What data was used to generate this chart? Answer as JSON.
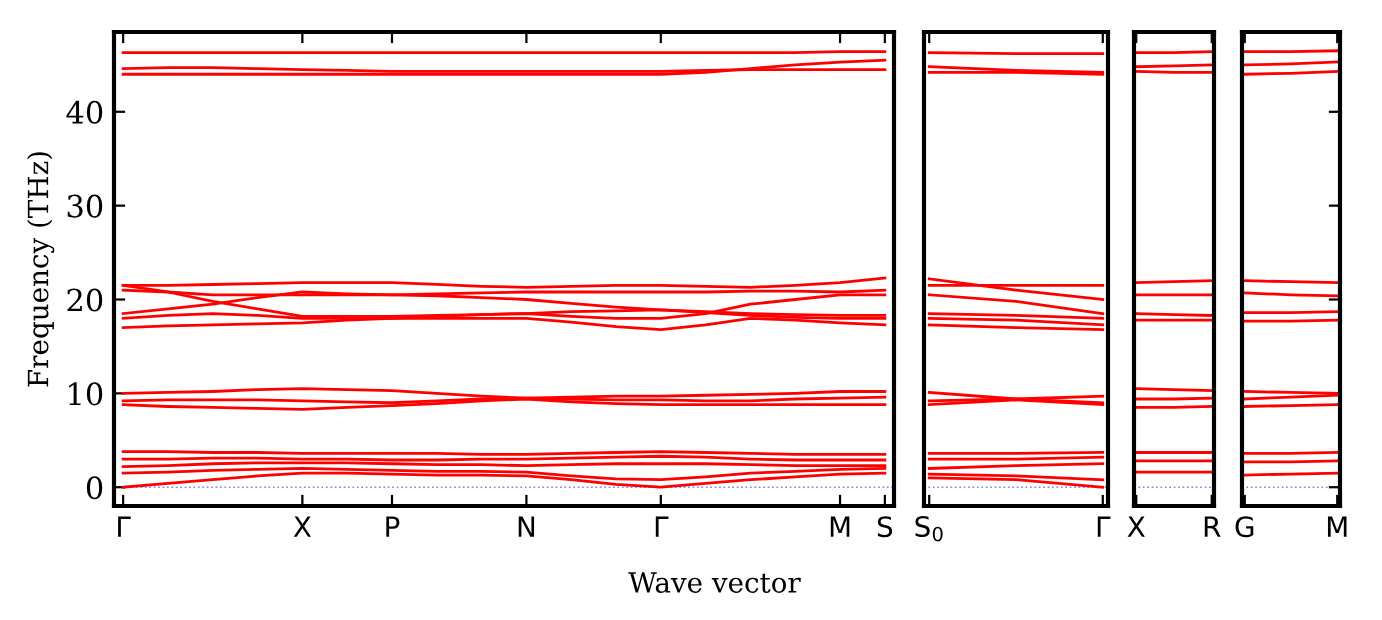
{
  "chart_data": [
    {
      "type": "line",
      "xlabel": "Wave vector",
      "ylabel": "Frequency (THz)",
      "line_style": "solid",
      "grid": false,
      "categories": [
        "Γ",
        null,
        null,
        null,
        "X",
        null,
        "P",
        null,
        null,
        "N",
        null,
        null,
        "Γ",
        null,
        null,
        null,
        "M",
        "S"
      ],
      "ylim": [
        -2,
        48.5
      ],
      "yticks": [
        0,
        10,
        20,
        30,
        40
      ],
      "ref_lines": [
        {
          "axis": "y",
          "value": 0,
          "color": "#8080ff",
          "line_style": "dotted"
        }
      ],
      "series": [
        {
          "color": "#ff0000",
          "values": [
            46.3,
            46.3,
            46.3,
            46.3,
            46.3,
            46.3,
            46.3,
            46.3,
            46.3,
            46.3,
            46.3,
            46.3,
            46.3,
            46.3,
            46.3,
            46.3,
            46.4,
            46.4
          ]
        },
        {
          "color": "#ff0000",
          "values": [
            44.6,
            44.7,
            44.7,
            44.6,
            44.5,
            44.4,
            44.3,
            44.3,
            44.3,
            44.3,
            44.3,
            44.3,
            44.3,
            44.4,
            44.5,
            44.5,
            44.5,
            44.5
          ]
        },
        {
          "color": "#ff0000",
          "values": [
            44.0,
            44.0,
            44.0,
            44.0,
            44.0,
            44.0,
            44.0,
            44.0,
            44.0,
            44.0,
            44.0,
            44.0,
            44.0,
            44.2,
            44.6,
            45.0,
            45.3,
            45.5
          ]
        },
        {
          "color": "#ff0000",
          "values": [
            21.5,
            21.5,
            21.6,
            21.7,
            21.8,
            21.8,
            21.8,
            21.6,
            21.4,
            21.3,
            21.4,
            21.5,
            21.5,
            21.4,
            21.3,
            21.5,
            21.8,
            22.3
          ]
        },
        {
          "color": "#ff0000",
          "values": [
            21.0,
            20.8,
            20.5,
            20.5,
            20.5,
            20.5,
            20.5,
            20.6,
            20.7,
            20.8,
            20.8,
            20.8,
            20.8,
            20.8,
            20.9,
            20.9,
            20.8,
            21.0
          ]
        },
        {
          "color": "#ff0000",
          "values": [
            21.5,
            20.8,
            19.8,
            19.0,
            18.2,
            18.2,
            18.2,
            18.3,
            18.4,
            18.5,
            18.2,
            18.0,
            18.0,
            18.5,
            19.5,
            20.0,
            20.5,
            20.5
          ]
        },
        {
          "color": "#ff0000",
          "values": [
            18.5,
            19.0,
            19.5,
            20.2,
            20.8,
            20.6,
            20.5,
            20.4,
            20.2,
            20.0,
            19.6,
            19.2,
            18.9,
            18.7,
            18.5,
            18.4,
            18.3,
            18.3
          ]
        },
        {
          "color": "#ff0000",
          "values": [
            18.0,
            18.3,
            18.5,
            18.3,
            18.0,
            18.0,
            18.0,
            18.2,
            18.4,
            18.5,
            18.7,
            18.8,
            18.9,
            18.6,
            18.3,
            18.1,
            18.0,
            18.0
          ]
        },
        {
          "color": "#ff0000",
          "values": [
            17.0,
            17.2,
            17.3,
            17.4,
            17.5,
            17.8,
            18.0,
            18.0,
            18.0,
            18.0,
            17.6,
            17.1,
            16.8,
            17.3,
            18.0,
            17.8,
            17.5,
            17.3
          ]
        },
        {
          "color": "#ff0000",
          "values": [
            10.0,
            10.1,
            10.2,
            10.4,
            10.5,
            10.4,
            10.3,
            10.0,
            9.7,
            9.5,
            9.6,
            9.7,
            9.7,
            9.8,
            9.9,
            10.0,
            10.2,
            10.2
          ]
        },
        {
          "color": "#ff0000",
          "values": [
            9.2,
            9.3,
            9.3,
            9.3,
            9.2,
            9.1,
            9.0,
            9.2,
            9.4,
            9.5,
            9.4,
            9.3,
            9.3,
            9.2,
            9.2,
            9.4,
            9.5,
            9.6
          ]
        },
        {
          "color": "#ff0000",
          "values": [
            8.8,
            8.6,
            8.5,
            8.4,
            8.3,
            8.5,
            8.7,
            8.9,
            9.2,
            9.4,
            9.1,
            8.9,
            8.8,
            8.8,
            8.8,
            8.8,
            8.8,
            8.8
          ]
        },
        {
          "color": "#ff0000",
          "values": [
            3.8,
            3.8,
            3.7,
            3.7,
            3.6,
            3.6,
            3.6,
            3.6,
            3.5,
            3.5,
            3.6,
            3.7,
            3.8,
            3.7,
            3.6,
            3.5,
            3.5,
            3.5
          ]
        },
        {
          "color": "#ff0000",
          "values": [
            3.0,
            3.0,
            3.1,
            3.1,
            3.0,
            3.0,
            2.9,
            2.9,
            3.0,
            3.0,
            3.1,
            3.2,
            3.3,
            3.2,
            3.0,
            2.9,
            2.9,
            2.9
          ]
        },
        {
          "color": "#ff0000",
          "values": [
            2.2,
            2.3,
            2.5,
            2.6,
            2.6,
            2.6,
            2.5,
            2.4,
            2.4,
            2.3,
            2.4,
            2.5,
            2.5,
            2.5,
            2.4,
            2.3,
            2.3,
            2.3
          ]
        },
        {
          "color": "#ff0000",
          "values": [
            1.5,
            1.6,
            1.8,
            1.9,
            2.0,
            1.9,
            1.8,
            1.7,
            1.7,
            1.6,
            1.2,
            0.9,
            0.8,
            1.1,
            1.5,
            1.7,
            1.9,
            2.0
          ]
        },
        {
          "color": "#ff0000",
          "values": [
            0,
            0.4,
            0.8,
            1.2,
            1.5,
            1.5,
            1.4,
            1.3,
            1.3,
            1.2,
            0.8,
            0.3,
            0,
            0.4,
            0.8,
            1.1,
            1.4,
            1.5
          ]
        }
      ]
    },
    {
      "type": "line",
      "line_style": "solid",
      "grid": false,
      "tick_labels": "x",
      "categories": [
        "S$_{0}$",
        null,
        "Γ"
      ],
      "ylim": [
        -2,
        48.5
      ],
      "yticks": [
        0,
        10,
        20,
        30,
        40
      ],
      "ref_lines": [
        {
          "axis": "y",
          "value": 0,
          "color": "#8080ff",
          "line_style": "dotted"
        }
      ],
      "series": [
        {
          "color": "#ff0000",
          "values": [
            46.3,
            46.2,
            46.2
          ]
        },
        {
          "color": "#ff0000",
          "values": [
            44.8,
            44.4,
            44.2
          ]
        },
        {
          "color": "#ff0000",
          "values": [
            44.2,
            44.2,
            44.0
          ]
        },
        {
          "color": "#ff0000",
          "values": [
            22.2,
            21.0,
            20.0
          ]
        },
        {
          "color": "#ff0000",
          "values": [
            21.5,
            21.5,
            21.5
          ]
        },
        {
          "color": "#ff0000",
          "values": [
            20.5,
            19.8,
            18.5
          ]
        },
        {
          "color": "#ff0000",
          "values": [
            18.5,
            18.3,
            18.0
          ]
        },
        {
          "color": "#ff0000",
          "values": [
            18.0,
            17.8,
            17.3
          ]
        },
        {
          "color": "#ff0000",
          "values": [
            17.3,
            17.0,
            16.8
          ]
        },
        {
          "color": "#ff0000",
          "values": [
            10.1,
            9.4,
            9.7
          ]
        },
        {
          "color": "#ff0000",
          "values": [
            9.2,
            9.4,
            9.0
          ]
        },
        {
          "color": "#ff0000",
          "values": [
            8.8,
            9.3,
            8.8
          ]
        },
        {
          "color": "#ff0000",
          "values": [
            3.6,
            3.6,
            3.7
          ]
        },
        {
          "color": "#ff0000",
          "values": [
            3.0,
            3.0,
            3.2
          ]
        },
        {
          "color": "#ff0000",
          "values": [
            2.0,
            2.3,
            2.5
          ]
        },
        {
          "color": "#ff0000",
          "values": [
            1.4,
            1.2,
            0.8
          ]
        },
        {
          "color": "#ff0000",
          "values": [
            1.0,
            0.8,
            0
          ]
        }
      ]
    },
    {
      "type": "line",
      "line_style": "solid",
      "grid": false,
      "tick_labels": "x",
      "categories": [
        "X",
        null,
        "R"
      ],
      "ylim": [
        -2,
        48.5
      ],
      "yticks": [
        0,
        10,
        20,
        30,
        40
      ],
      "ref_lines": [
        {
          "axis": "y",
          "value": 0,
          "color": "#8080ff",
          "line_style": "dotted"
        }
      ],
      "series": [
        {
          "color": "#ff0000",
          "values": [
            46.3,
            46.3,
            46.4
          ]
        },
        {
          "color": "#ff0000",
          "values": [
            44.8,
            44.9,
            45.0
          ]
        },
        {
          "color": "#ff0000",
          "values": [
            44.3,
            44.2,
            44.2
          ]
        },
        {
          "color": "#ff0000",
          "values": [
            21.8,
            21.9,
            22.0
          ]
        },
        {
          "color": "#ff0000",
          "values": [
            20.5,
            20.5,
            20.5
          ]
        },
        {
          "color": "#ff0000",
          "values": [
            18.5,
            18.4,
            18.3
          ]
        },
        {
          "color": "#ff0000",
          "values": [
            17.8,
            17.8,
            17.8
          ]
        },
        {
          "color": "#ff0000",
          "values": [
            10.5,
            10.4,
            10.3
          ]
        },
        {
          "color": "#ff0000",
          "values": [
            9.4,
            9.4,
            9.5
          ]
        },
        {
          "color": "#ff0000",
          "values": [
            8.5,
            8.5,
            8.6
          ]
        },
        {
          "color": "#ff0000",
          "values": [
            3.7,
            3.7,
            3.7
          ]
        },
        {
          "color": "#ff0000",
          "values": [
            2.8,
            2.8,
            2.8
          ]
        },
        {
          "color": "#ff0000",
          "values": [
            1.6,
            1.6,
            1.6
          ]
        }
      ]
    },
    {
      "type": "line",
      "line_style": "solid",
      "grid": false,
      "tick_labels": "x",
      "categories": [
        "G",
        null,
        "M"
      ],
      "ylim": [
        -2,
        48.5
      ],
      "yticks": [
        0,
        10,
        20,
        30,
        40
      ],
      "ref_lines": [
        {
          "axis": "y",
          "value": 0,
          "color": "#8080ff",
          "line_style": "dotted"
        }
      ],
      "series": [
        {
          "color": "#ff0000",
          "values": [
            46.4,
            46.4,
            46.5
          ]
        },
        {
          "color": "#ff0000",
          "values": [
            45.0,
            45.1,
            45.3
          ]
        },
        {
          "color": "#ff0000",
          "values": [
            44.0,
            44.1,
            44.3
          ]
        },
        {
          "color": "#ff0000",
          "values": [
            22.0,
            21.9,
            21.8
          ]
        },
        {
          "color": "#ff0000",
          "values": [
            20.7,
            20.5,
            20.4
          ]
        },
        {
          "color": "#ff0000",
          "values": [
            18.6,
            18.6,
            18.7
          ]
        },
        {
          "color": "#ff0000",
          "values": [
            17.7,
            17.7,
            17.8
          ]
        },
        {
          "color": "#ff0000",
          "values": [
            10.2,
            10.1,
            10.0
          ]
        },
        {
          "color": "#ff0000",
          "values": [
            9.4,
            9.6,
            9.8
          ]
        },
        {
          "color": "#ff0000",
          "values": [
            8.6,
            8.7,
            8.8
          ]
        },
        {
          "color": "#ff0000",
          "values": [
            3.6,
            3.6,
            3.7
          ]
        },
        {
          "color": "#ff0000",
          "values": [
            2.7,
            2.7,
            2.8
          ]
        },
        {
          "color": "#ff0000",
          "values": [
            1.3,
            1.4,
            1.5
          ]
        }
      ]
    }
  ]
}
